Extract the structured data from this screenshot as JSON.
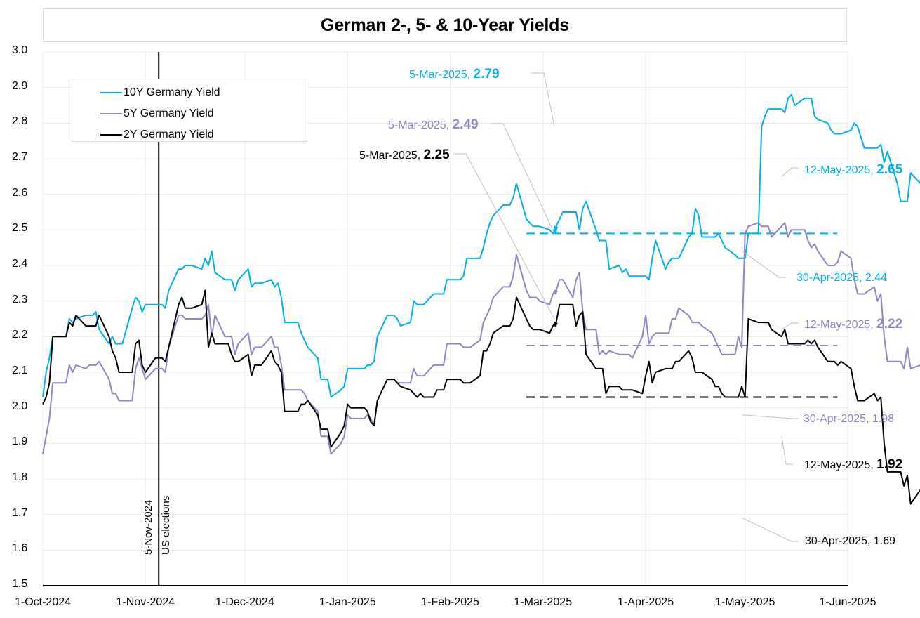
{
  "chart_data": {
    "type": "line",
    "title": "German 2-, 5- & 10-Year Yields",
    "xlabel": "",
    "ylabel": "",
    "ylim": [
      1.5,
      3.0
    ],
    "yticks": [
      "3.0",
      "2.9",
      "2.8",
      "2.7",
      "2.6",
      "2.5",
      "2.4",
      "2.3",
      "2.2",
      "2.1",
      "2.0",
      "1.9",
      "1.8",
      "1.7",
      "1.6",
      "1.5"
    ],
    "xlim": [
      "2024-10-01",
      "2025-06-01"
    ],
    "xticks": [
      "1-Oct-2024",
      "1-Nov-2024",
      "1-Dec-2024",
      "1-Jan-2025",
      "1-Feb-2025",
      "1-Mar-2025",
      "1-Apr-2025",
      "1-May-2025",
      "1-Jun-2025"
    ],
    "xtick_dates": [
      "2024-10-01",
      "2024-11-01",
      "2024-12-01",
      "2025-01-01",
      "2025-02-01",
      "2025-03-01",
      "2025-04-01",
      "2025-05-01",
      "2025-06-01"
    ],
    "grid": true,
    "legend_position": "top-left",
    "series": [
      {
        "name": "10Y Germany Yield",
        "color": "#00b0f0",
        "start_date": "2024-10-01",
        "values": [
          2.03,
          2.1,
          2.14,
          2.2,
          2.2,
          2.2,
          2.25,
          2.24,
          2.25,
          2.26,
          2.26,
          2.26,
          2.27,
          2.22,
          2.18,
          2.2,
          2.18,
          2.18,
          2.18,
          2.28,
          2.31,
          2.3,
          2.27,
          2.29,
          2.29,
          2.29,
          2.29,
          2.28,
          2.33,
          2.39,
          2.39,
          2.4,
          2.4,
          2.4,
          2.39,
          2.42,
          2.4,
          2.44,
          2.38,
          2.36,
          2.36,
          2.36,
          2.33,
          2.36,
          2.39,
          2.34,
          2.35,
          2.35,
          2.35,
          2.36,
          2.34,
          2.35,
          2.31,
          2.24,
          2.24,
          2.24,
          2.21,
          2.19,
          2.17,
          2.14,
          2.08,
          2.08,
          2.08,
          2.03,
          2.05,
          2.06,
          2.11,
          2.11,
          2.11,
          2.11,
          2.12,
          2.12,
          2.13,
          2.2,
          2.26,
          2.26,
          2.26,
          2.25,
          2.23,
          2.24,
          2.3,
          2.29,
          2.29,
          2.29,
          2.32,
          2.32,
          2.32,
          2.32,
          2.36,
          2.36,
          2.36,
          2.37,
          2.42,
          2.42,
          2.42,
          2.45,
          2.49,
          2.52,
          2.54,
          2.57,
          2.57,
          2.57,
          2.59,
          2.63,
          2.53,
          2.52,
          2.51,
          2.51,
          2.51,
          2.5,
          2.49,
          2.51,
          2.53,
          2.55,
          2.55,
          2.55,
          2.5,
          2.56,
          2.58,
          2.5,
          2.47,
          2.47,
          2.47,
          2.39,
          2.4,
          2.38,
          2.39,
          2.37,
          2.37,
          2.37,
          2.37,
          2.36,
          2.42,
          2.47,
          2.39,
          2.41,
          2.42,
          2.42,
          2.42,
          2.48,
          2.49,
          2.56,
          2.54,
          2.48,
          2.48,
          2.48,
          2.49,
          2.47,
          2.45,
          2.43,
          2.42,
          2.42,
          2.42,
          2.49,
          2.49,
          2.79,
          2.82,
          2.84,
          2.84,
          2.84,
          2.83,
          2.87,
          2.88,
          2.85,
          2.87,
          2.87,
          2.87,
          2.82,
          2.81,
          2.8,
          2.78,
          2.77,
          2.77,
          2.77,
          2.78,
          2.8,
          2.79,
          2.76,
          2.73,
          2.73,
          2.73,
          2.74,
          2.69,
          2.72,
          2.63,
          2.58,
          2.58,
          2.58,
          2.66,
          2.63,
          2.59,
          2.58,
          2.57,
          2.57,
          2.57,
          2.51,
          2.53,
          2.51,
          2.47,
          2.46,
          2.46,
          2.46,
          2.47,
          2.44,
          2.49,
          2.45,
          2.47,
          2.47,
          2.47,
          2.52,
          2.5,
          2.44,
          2.44,
          2.53,
          2.53,
          2.53,
          2.51,
          2.53,
          2.47,
          2.53,
          2.56,
          2.56,
          2.56,
          2.65
        ]
      },
      {
        "name": "5Y Germany Yield",
        "color": "#9582c8",
        "start_date": "2024-10-01",
        "values": [
          1.87,
          1.92,
          1.97,
          2.07,
          2.07,
          2.07,
          2.12,
          2.1,
          2.12,
          2.11,
          2.12,
          2.12,
          2.12,
          2.13,
          2.08,
          2.04,
          2.04,
          2.02,
          2.02,
          2.02,
          2.11,
          2.14,
          2.11,
          2.08,
          2.11,
          2.11,
          2.11,
          2.1,
          2.17,
          2.26,
          2.26,
          2.25,
          2.25,
          2.25,
          2.25,
          2.26,
          2.29,
          2.2,
          2.26,
          2.2,
          2.2,
          2.2,
          2.15,
          2.18,
          2.21,
          2.15,
          2.17,
          2.17,
          2.17,
          2.2,
          2.17,
          2.17,
          2.12,
          2.05,
          2.05,
          2.05,
          2.05,
          2.04,
          2.02,
          1.99,
          1.92,
          1.92,
          1.92,
          1.87,
          1.9,
          1.92,
          1.98,
          1.97,
          1.97,
          1.97,
          1.98,
          1.97,
          1.95,
          2.02,
          2.08,
          2.08,
          2.08,
          2.07,
          2.07,
          2.07,
          2.11,
          2.09,
          2.09,
          2.09,
          2.12,
          2.12,
          2.12,
          2.12,
          2.18,
          2.18,
          2.18,
          2.17,
          2.17,
          2.17,
          2.19,
          2.24,
          2.26,
          2.28,
          2.31,
          2.34,
          2.34,
          2.34,
          2.37,
          2.43,
          2.33,
          2.31,
          2.31,
          2.31,
          2.3,
          2.29,
          2.32,
          2.33,
          2.36,
          2.36,
          2.31,
          2.36,
          2.38,
          2.27,
          2.22,
          2.22,
          2.15,
          2.16,
          2.15,
          2.16,
          2.15,
          2.15,
          2.15,
          2.15,
          2.14,
          2.2,
          2.26,
          2.18,
          2.2,
          2.21,
          2.21,
          2.21,
          2.25,
          2.25,
          2.28,
          2.26,
          2.24,
          2.24,
          2.24,
          2.23,
          2.21,
          2.19,
          2.17,
          2.15,
          2.15,
          2.15,
          2.2,
          2.17,
          2.49,
          2.51,
          2.52,
          2.51,
          2.51,
          2.51,
          2.48,
          2.51,
          2.52,
          2.48,
          2.5,
          2.5,
          2.5,
          2.47,
          2.45,
          2.46,
          2.44,
          2.4,
          2.4,
          2.4,
          2.41,
          2.44,
          2.42,
          2.36,
          2.32,
          2.32,
          2.32,
          2.34,
          2.3,
          2.32,
          2.2,
          2.13,
          2.13,
          2.13,
          2.11,
          2.17,
          2.11,
          2.12,
          2.14,
          2.14,
          2.14,
          2.09,
          2.11,
          2.08,
          2.04,
          2.02,
          2.02,
          2.02,
          2.02,
          2.0,
          2.05,
          2.0,
          2.02,
          2.02,
          2.02,
          2.06,
          2.05,
          1.98,
          1.98,
          2.07,
          2.07,
          2.07,
          2.06,
          2.06,
          2.01,
          2.07,
          2.1,
          2.1,
          2.1,
          2.22
        ]
      },
      {
        "name": "2Y Germany Yield",
        "color": "#000000",
        "start_date": "2024-10-01",
        "values": [
          2.01,
          2.03,
          2.07,
          2.2,
          2.2,
          2.2,
          2.24,
          2.23,
          2.26,
          2.23,
          2.23,
          2.23,
          2.23,
          2.26,
          2.2,
          2.16,
          2.14,
          2.1,
          2.1,
          2.1,
          2.18,
          2.19,
          2.12,
          2.1,
          2.14,
          2.14,
          2.14,
          2.13,
          2.17,
          2.29,
          2.31,
          2.28,
          2.28,
          2.28,
          2.29,
          2.33,
          2.17,
          2.21,
          2.18,
          2.18,
          2.18,
          2.15,
          2.13,
          2.13,
          2.15,
          2.09,
          2.12,
          2.12,
          2.12,
          2.16,
          2.13,
          2.12,
          2.1,
          1.99,
          1.99,
          1.99,
          2.01,
          2.01,
          2.02,
          1.98,
          1.94,
          1.94,
          1.94,
          1.89,
          1.93,
          1.95,
          2.01,
          2.0,
          2.0,
          2.0,
          1.99,
          1.96,
          1.95,
          2.02,
          2.08,
          2.08,
          2.08,
          2.07,
          2.06,
          2.05,
          2.04,
          2.03,
          2.04,
          2.03,
          2.03,
          2.05,
          2.05,
          2.05,
          2.08,
          2.08,
          2.08,
          2.07,
          2.07,
          2.07,
          2.09,
          2.16,
          2.16,
          2.18,
          2.21,
          2.23,
          2.23,
          2.23,
          2.25,
          2.31,
          2.25,
          2.23,
          2.22,
          2.22,
          2.22,
          2.21,
          2.23,
          2.24,
          2.29,
          2.29,
          2.29,
          2.23,
          2.26,
          2.27,
          2.15,
          2.11,
          2.11,
          2.11,
          2.04,
          2.06,
          2.06,
          2.05,
          2.05,
          2.05,
          2.05,
          2.04,
          2.09,
          2.13,
          2.07,
          2.1,
          2.11,
          2.11,
          2.11,
          2.13,
          2.13,
          2.16,
          2.14,
          2.1,
          2.1,
          2.1,
          2.08,
          2.06,
          2.06,
          2.04,
          2.03,
          2.03,
          2.03,
          2.06,
          2.03,
          2.25,
          2.24,
          2.24,
          2.24,
          2.24,
          2.22,
          2.2,
          2.22,
          2.18,
          2.18,
          2.18,
          2.18,
          2.19,
          2.18,
          2.19,
          2.17,
          2.13,
          2.13,
          2.13,
          2.12,
          2.13,
          2.11,
          2.06,
          2.02,
          2.02,
          2.02,
          2.04,
          2.02,
          2.03,
          1.9,
          1.82,
          1.82,
          1.82,
          1.78,
          1.81,
          1.73,
          1.77,
          1.78,
          1.78,
          1.78,
          1.76,
          1.75,
          1.74,
          1.68,
          1.68,
          1.68,
          1.68,
          1.67,
          1.73,
          1.68,
          1.72,
          1.72,
          1.72,
          1.74,
          1.74,
          1.69,
          1.69,
          1.77,
          1.77,
          1.77,
          1.76,
          1.75,
          1.72,
          1.77,
          1.79,
          1.79,
          1.79,
          1.92
        ]
      }
    ],
    "reference_lines": [
      {
        "series": "10Y Germany Yield",
        "value": 2.49,
        "style": "dashed",
        "from": "2025-02-24",
        "to": "2025-05-31"
      },
      {
        "series": "5Y Germany Yield",
        "value": 2.175,
        "style": "dashed",
        "from": "2025-02-24",
        "to": "2025-05-31"
      },
      {
        "series": "2Y Germany Yield",
        "value": 2.03,
        "style": "dashed",
        "from": "2025-02-24",
        "to": "2025-05-31"
      }
    ],
    "event_line": {
      "date": "2024-11-05",
      "labels": [
        "5-Nov-2024",
        "US elections"
      ]
    },
    "annotations": [
      {
        "series": "10Y Germany Yield",
        "date": "5-Mar-2025",
        "value": "2.79",
        "bold_value": true,
        "position": "upper-left"
      },
      {
        "series": "5Y Germany Yield",
        "date": "5-Mar-2025",
        "value": "2.49",
        "bold_value": true,
        "position": "upper-left"
      },
      {
        "series": "2Y Germany Yield",
        "date": "5-Mar-2025",
        "value": "2.25",
        "bold_value": true,
        "position": "upper-left"
      },
      {
        "series": "10Y Germany Yield",
        "date": "12-May-2025",
        "value": "2.65",
        "bold_value": true,
        "position": "right"
      },
      {
        "series": "10Y Germany Yield",
        "date": "30-Apr-2025",
        "value": "2.44",
        "bold_value": false,
        "position": "lower-right"
      },
      {
        "series": "5Y Germany Yield",
        "date": "12-May-2025",
        "value": "2.22",
        "bold_value": true,
        "position": "right"
      },
      {
        "series": "5Y Germany Yield",
        "date": "30-Apr-2025",
        "value": "1.98",
        "bold_value": false,
        "position": "lower-right"
      },
      {
        "series": "2Y Germany Yield",
        "date": "12-May-2025",
        "value": "1.92",
        "bold_value": true,
        "position": "right"
      },
      {
        "series": "2Y Germany Yield",
        "date": "30-Apr-2025",
        "value": "1.69",
        "bold_value": false,
        "position": "lower-right"
      }
    ]
  },
  "legend": {
    "items": [
      {
        "label": "10Y Germany Yield",
        "color": "#00b0f0"
      },
      {
        "label": "5Y Germany Yield",
        "color": "#9582c8"
      },
      {
        "label": "2Y Germany Yield",
        "color": "#000000"
      }
    ]
  },
  "colors": {
    "grid": "#ececec",
    "title_border": "#d9d9d9",
    "leader": "#bfbfbf"
  }
}
